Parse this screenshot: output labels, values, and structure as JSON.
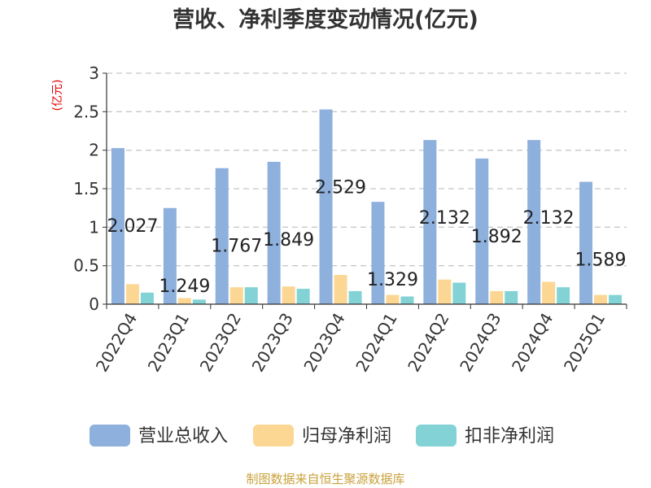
{
  "chart_data": {
    "type": "bar",
    "title": "营收、净利季度变动情况(亿元)",
    "ylabel": "(亿元)",
    "ylim": [
      0,
      3
    ],
    "yticks": [
      "0",
      "0.5",
      "1",
      "1.5",
      "2",
      "2.5",
      "3"
    ],
    "grid": true,
    "legend_position": "bottom",
    "categories": [
      "2022Q4",
      "2023Q1",
      "2023Q2",
      "2023Q3",
      "2023Q4",
      "2024Q1",
      "2024Q2",
      "2024Q3",
      "2024Q4",
      "2025Q1"
    ],
    "series": [
      {
        "name": "营业总收入",
        "color": "#8eb0dd",
        "values": [
          2.027,
          1.249,
          1.767,
          1.849,
          2.529,
          1.329,
          2.132,
          1.892,
          2.132,
          1.589
        ],
        "labels": [
          "2.027",
          "1.249",
          "1.767",
          "1.849",
          "2.529",
          "1.329",
          "2.132",
          "1.892",
          "2.132",
          "1.589"
        ]
      },
      {
        "name": "归母净利润",
        "color": "#fcd693",
        "values": [
          0.26,
          0.08,
          0.22,
          0.23,
          0.38,
          0.12,
          0.32,
          0.17,
          0.29,
          0.12
        ]
      },
      {
        "name": "扣非净利润",
        "color": "#83d3d6",
        "values": [
          0.15,
          0.06,
          0.22,
          0.2,
          0.17,
          0.1,
          0.28,
          0.17,
          0.22,
          0.12
        ]
      }
    ]
  },
  "source": "制图数据来自恒生聚源数据库"
}
